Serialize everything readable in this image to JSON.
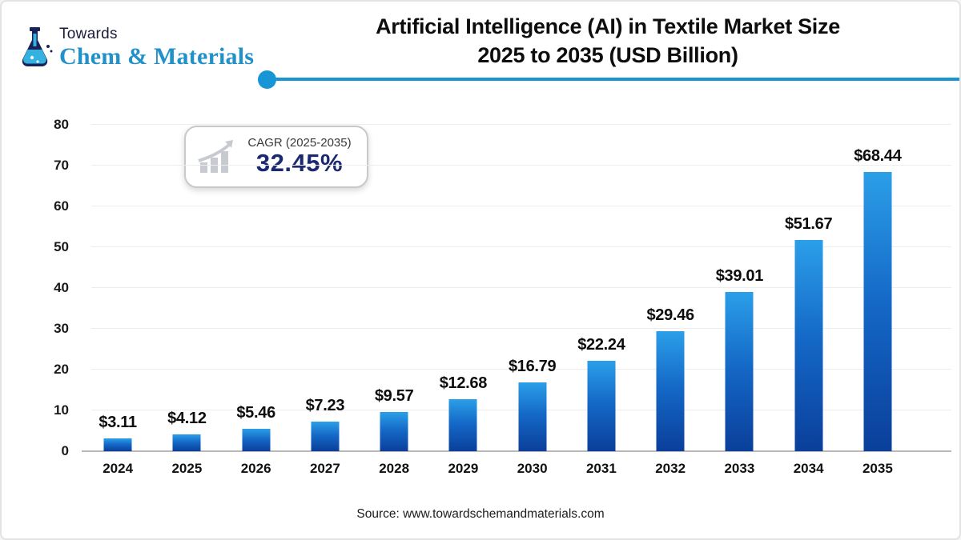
{
  "logo": {
    "towards": "Towards",
    "brand": "Chem & Materials",
    "brand_color": "#2191c9",
    "flask_color": "#18235a",
    "liquid_color": "#35b1e0"
  },
  "header": {
    "title_line1": "Artificial Intelligence (AI) in Textile Market Size",
    "title_line2": "2025 to 2035 (USD Billion)",
    "accent_color": "#1795d4"
  },
  "cagr_badge": {
    "label": "CAGR (2025-2035)",
    "value": "32.45%",
    "value_color": "#1b2a70",
    "icon_color": "#c7cbd1"
  },
  "chart_data": {
    "type": "bar",
    "title": "Artificial Intelligence (AI) in Textile Market Size 2025 to 2035 (USD Billion)",
    "categories": [
      "2024",
      "2025",
      "2026",
      "2027",
      "2028",
      "2029",
      "2030",
      "2031",
      "2032",
      "2033",
      "2034",
      "2035"
    ],
    "values": [
      3.11,
      4.12,
      5.46,
      7.23,
      9.57,
      12.68,
      16.79,
      22.24,
      29.46,
      39.01,
      51.67,
      68.44
    ],
    "value_labels": [
      "$3.11",
      "$4.12",
      "$5.46",
      "$7.23",
      "$9.57",
      "$12.68",
      "$16.79",
      "$22.24",
      "$29.46",
      "$39.01",
      "$51.67",
      "$68.44"
    ],
    "xlabel": "",
    "ylabel": "",
    "ylim": [
      0,
      80
    ],
    "yticks": [
      0,
      10,
      20,
      30,
      40,
      50,
      60,
      70,
      80
    ],
    "grid": true,
    "legend": false,
    "bar_gradient_top": "#2b9fe8",
    "bar_gradient_mid": "#1467c6",
    "bar_gradient_bottom": "#0a3f9a"
  },
  "footer": {
    "source": "Source: www.towardschemandmaterials.com"
  }
}
